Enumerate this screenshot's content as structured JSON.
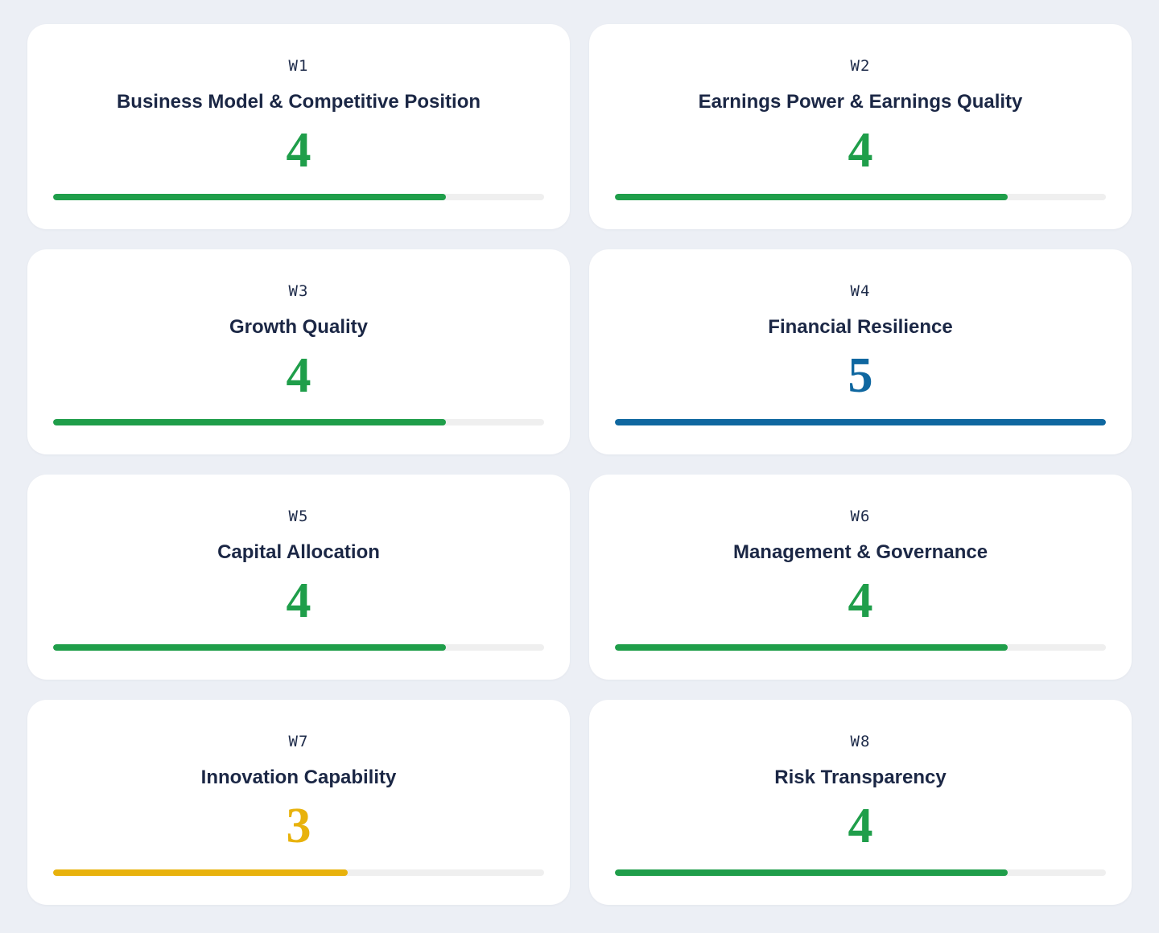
{
  "cards": [
    {
      "code": "W1",
      "title": "Business Model & Competitive Position",
      "score": "4",
      "fill": 0.8,
      "color": "#1f9e4a"
    },
    {
      "code": "W2",
      "title": "Earnings Power & Earnings Quality",
      "score": "4",
      "fill": 0.8,
      "color": "#1f9e4a"
    },
    {
      "code": "W3",
      "title": "Growth Quality",
      "score": "4",
      "fill": 0.8,
      "color": "#1f9e4a"
    },
    {
      "code": "W4",
      "title": "Financial Resilience",
      "score": "5",
      "fill": 1.0,
      "color": "#0f67a0"
    },
    {
      "code": "W5",
      "title": "Capital Allocation",
      "score": "4",
      "fill": 0.8,
      "color": "#1f9e4a"
    },
    {
      "code": "W6",
      "title": "Management & Governance",
      "score": "4",
      "fill": 0.8,
      "color": "#1f9e4a"
    },
    {
      "code": "W7",
      "title": "Innovation Capability",
      "score": "3",
      "fill": 0.6,
      "color": "#e8b20c"
    },
    {
      "code": "W8",
      "title": "Risk Transparency",
      "score": "4",
      "fill": 0.8,
      "color": "#1f9e4a"
    }
  ]
}
